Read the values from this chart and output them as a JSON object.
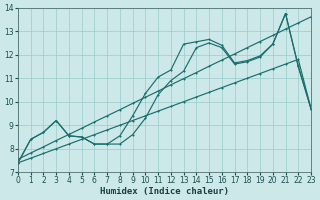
{
  "bg_color": "#cce8e8",
  "grid_color": "#99cccc",
  "line_color": "#1a6e6e",
  "xlabel": "Humidex (Indice chaleur)",
  "ylim": [
    7,
    14
  ],
  "xlim": [
    0,
    23
  ],
  "yticks": [
    7,
    8,
    9,
    10,
    11,
    12,
    13,
    14
  ],
  "xticks": [
    0,
    1,
    2,
    3,
    4,
    5,
    6,
    7,
    8,
    9,
    10,
    11,
    12,
    13,
    14,
    15,
    16,
    17,
    18,
    19,
    20,
    21,
    22,
    23
  ],
  "line_straight1_x": [
    0,
    1,
    2,
    3,
    4,
    5,
    6,
    7,
    8,
    9,
    10,
    11,
    12,
    13,
    14,
    15,
    16,
    17,
    18,
    19,
    20,
    21,
    22,
    23
  ],
  "line_straight1_y": [
    7.55,
    7.82,
    8.08,
    8.35,
    8.61,
    8.87,
    9.14,
    9.4,
    9.66,
    9.93,
    10.19,
    10.45,
    10.72,
    10.98,
    11.24,
    11.51,
    11.77,
    12.03,
    12.3,
    12.56,
    12.82,
    13.09,
    13.35,
    13.61
  ],
  "line_straight2_x": [
    0,
    1,
    2,
    3,
    4,
    5,
    6,
    7,
    8,
    9,
    10,
    11,
    12,
    13,
    14,
    15,
    16,
    17,
    18,
    19,
    20,
    21,
    22,
    23
  ],
  "line_straight2_y": [
    7.4,
    7.6,
    7.8,
    8.0,
    8.2,
    8.4,
    8.6,
    8.8,
    9.0,
    9.2,
    9.4,
    9.6,
    9.8,
    10.0,
    10.2,
    10.4,
    10.6,
    10.8,
    11.0,
    11.2,
    11.4,
    11.6,
    11.8,
    9.7
  ],
  "line_peak_x": [
    0,
    1,
    2,
    3,
    4,
    5,
    6,
    7,
    8,
    9,
    10,
    11,
    12,
    13,
    14,
    15,
    16,
    17,
    18,
    19,
    20,
    21,
    22,
    23
  ],
  "line_peak_y": [
    7.4,
    8.4,
    8.7,
    9.2,
    8.55,
    8.5,
    8.2,
    8.2,
    8.55,
    9.4,
    10.35,
    11.05,
    11.35,
    12.45,
    12.55,
    12.65,
    12.4,
    11.65,
    11.75,
    11.95,
    12.45,
    13.75,
    11.5,
    9.7
  ],
  "line_dip_x": [
    0,
    1,
    2,
    3,
    4,
    5,
    6,
    7,
    8,
    9,
    10,
    11,
    12,
    13,
    14,
    15,
    16,
    17,
    18,
    19,
    20,
    21,
    22,
    23
  ],
  "line_dip_y": [
    7.4,
    8.4,
    8.7,
    9.2,
    8.55,
    8.5,
    8.2,
    8.2,
    8.2,
    8.6,
    9.3,
    10.3,
    10.9,
    11.3,
    12.3,
    12.5,
    12.3,
    11.6,
    11.7,
    11.9,
    12.45,
    13.75,
    11.5,
    9.7
  ]
}
